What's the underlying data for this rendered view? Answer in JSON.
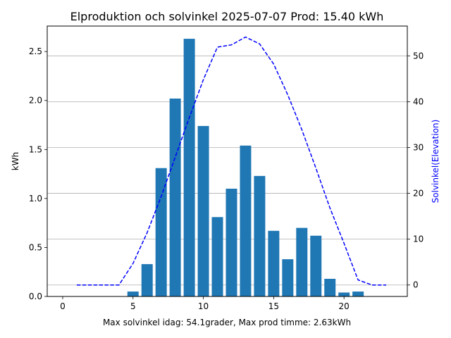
{
  "chart_data": {
    "type": "bar",
    "title": "Elproduktion och solvinkel 2025-07-07 Prod: 15.40 kWh",
    "xlabel": "Max solvinkel idag: 54.1grader, Max prod timme: 2.63kWh",
    "ylabel": "kWh",
    "y2label": "Solvinkel(Elevation)",
    "xlim": [
      -1.1,
      24.5
    ],
    "ylim": [
      0,
      2.76
    ],
    "y2lim": [
      -2.5,
      56.5
    ],
    "xticks": [
      0,
      5,
      10,
      15,
      20
    ],
    "yticks": [
      0.0,
      0.5,
      1.0,
      1.5,
      2.0,
      2.5
    ],
    "y2ticks": [
      0,
      10,
      20,
      30,
      40,
      50
    ],
    "grid": "horizontal, right axis",
    "bar_color": "#1f77b4",
    "line_color": "#0000ff",
    "y2label_color": "#0000ff",
    "bars": {
      "name": "kWh",
      "x": [
        5,
        6,
        7,
        8,
        9,
        10,
        11,
        12,
        13,
        14,
        15,
        16,
        17,
        18,
        19,
        20,
        21
      ],
      "values": [
        0.05,
        0.33,
        1.31,
        2.02,
        2.63,
        1.74,
        0.81,
        1.1,
        1.54,
        1.23,
        0.67,
        0.38,
        0.7,
        0.62,
        0.18,
        0.04,
        0.05
      ]
    },
    "elevation": {
      "name": "Solvinkel(Elevation)",
      "x": [
        1,
        2,
        3,
        4,
        5,
        6,
        7,
        8,
        9,
        10,
        11,
        12,
        13,
        14,
        15,
        16,
        17,
        18,
        19,
        20,
        21,
        22,
        23
      ],
      "values": [
        0,
        0,
        0,
        0,
        4.7,
        11.4,
        19.3,
        27.9,
        36.5,
        44.8,
        51.9,
        52.4,
        54.1,
        52.6,
        48.2,
        41.5,
        33.9,
        25.5,
        16.8,
        9.1,
        1.1,
        0,
        0
      ]
    }
  }
}
